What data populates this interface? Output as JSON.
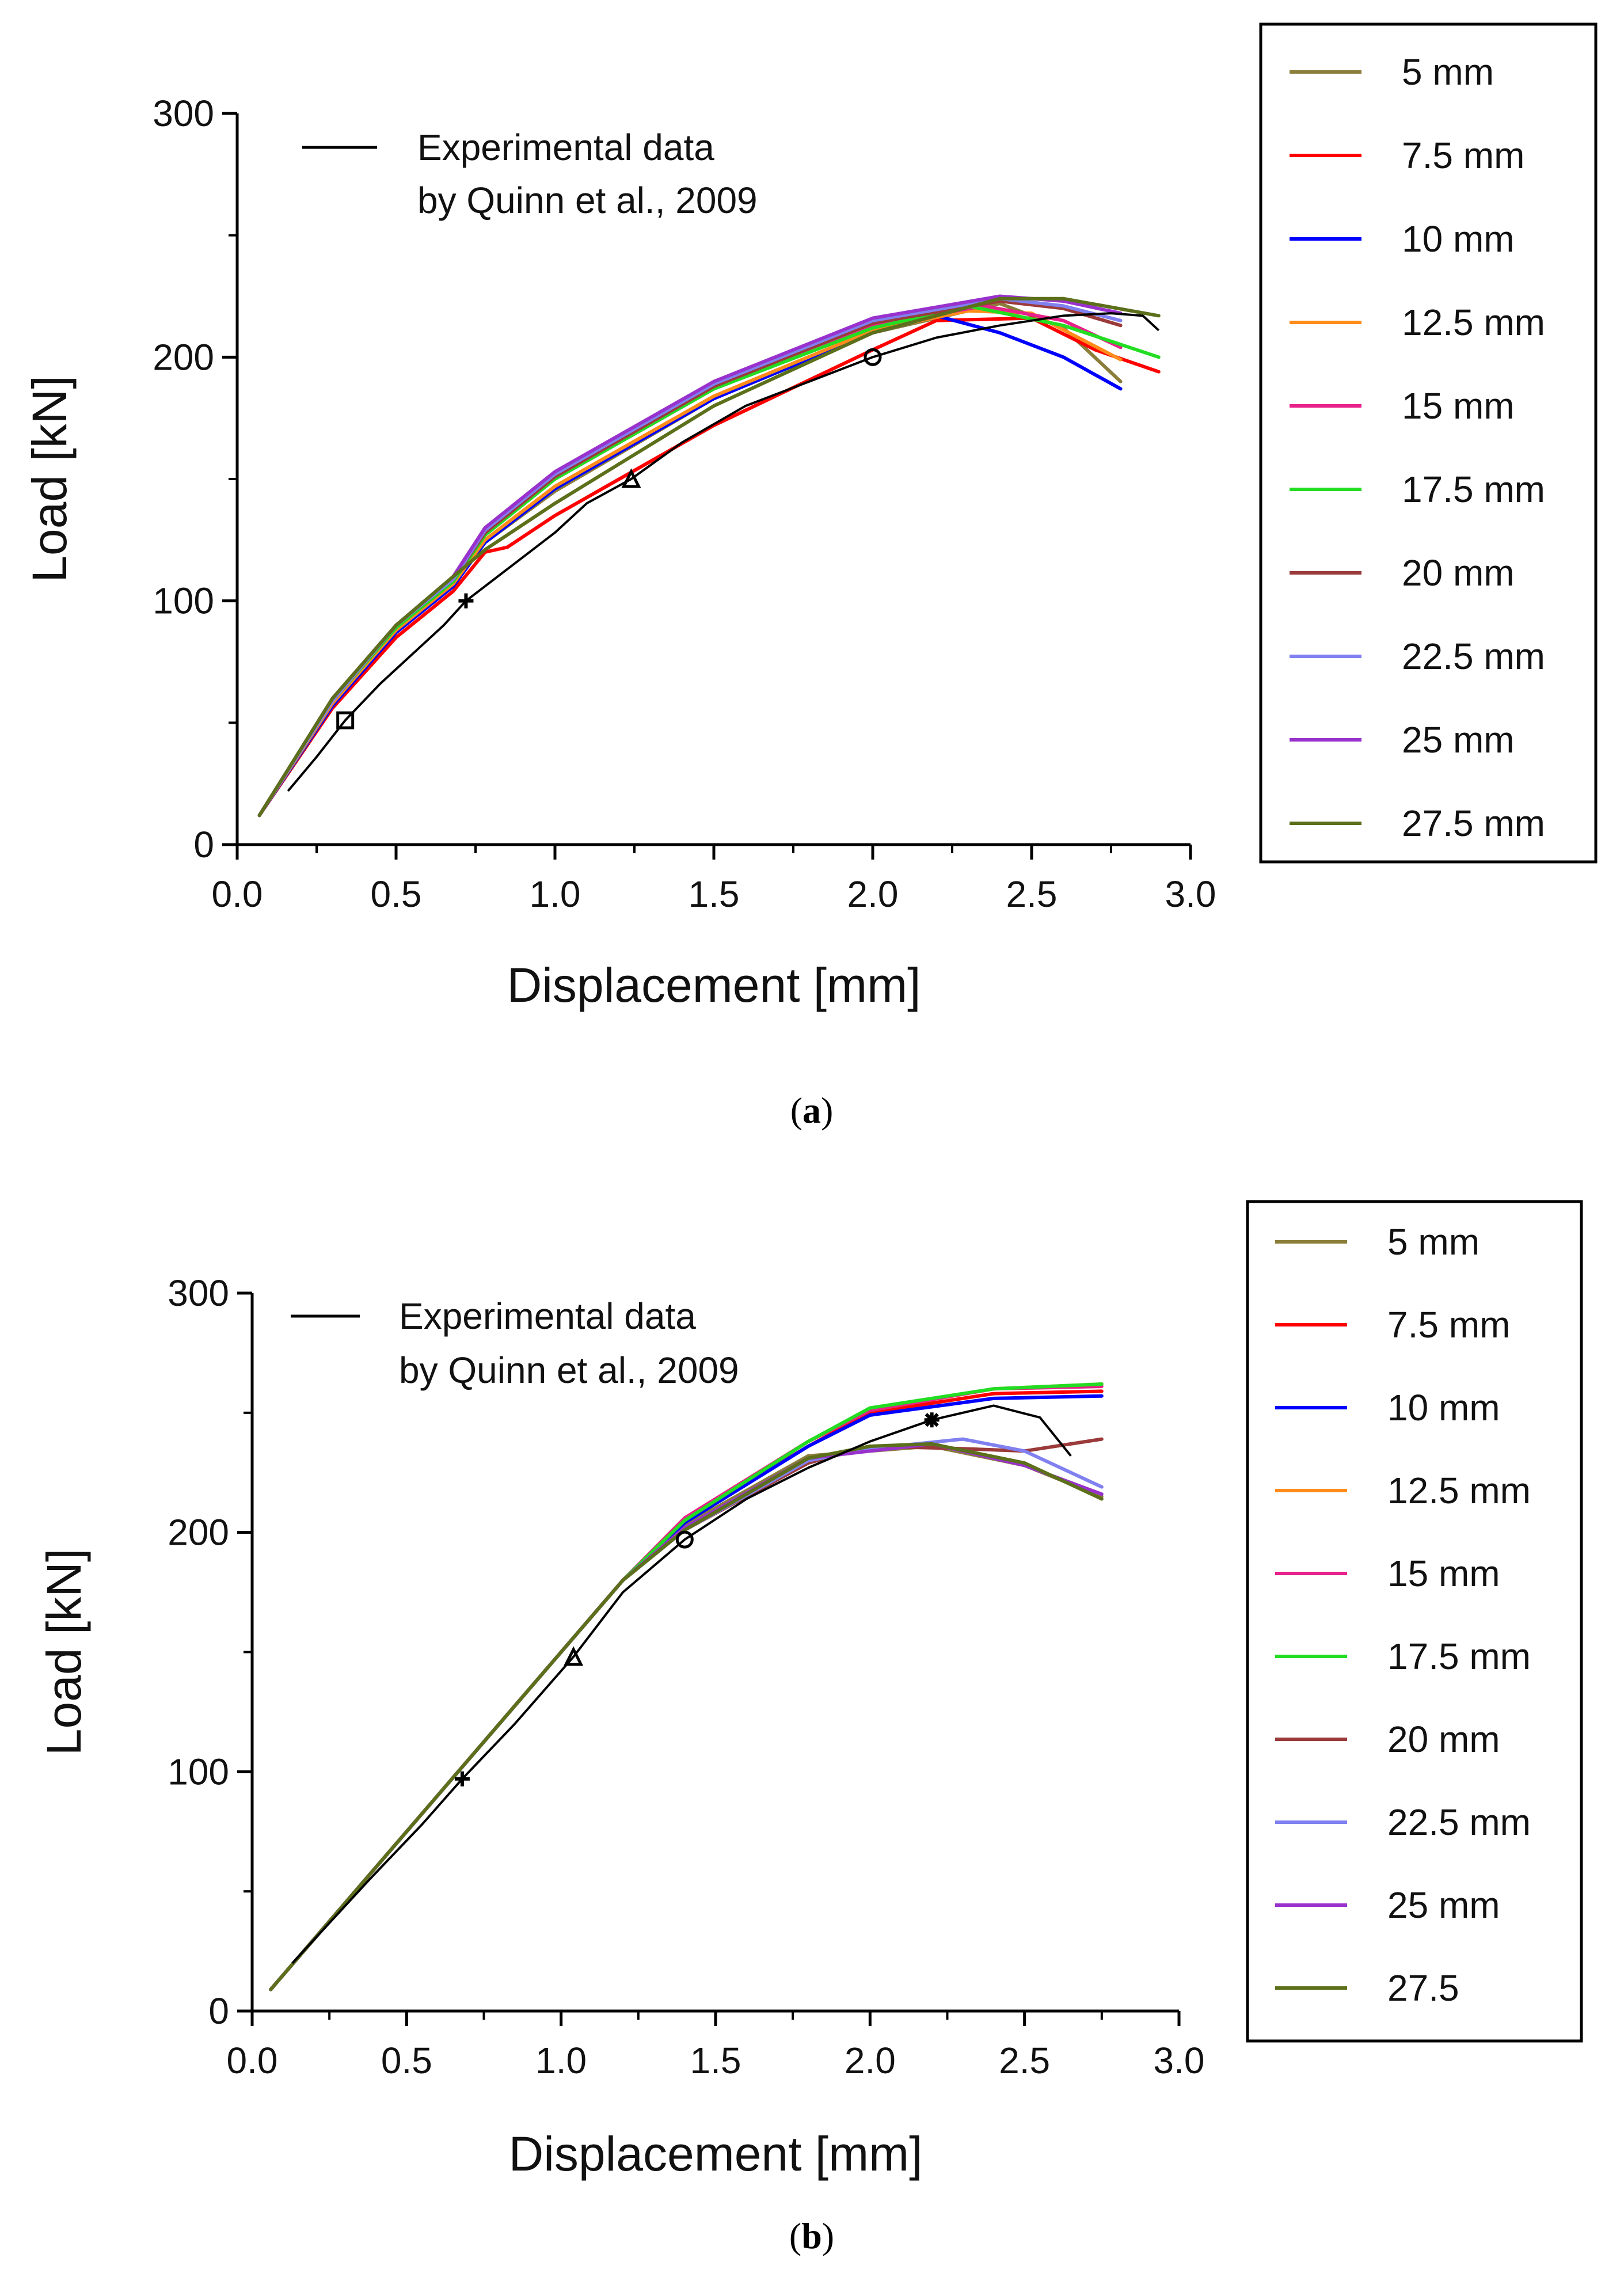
{
  "chart_data": [
    {
      "type": "line",
      "xlabel": "Displacement [mm]",
      "ylabel": "Load [kN]",
      "xlim": [
        0,
        3.0
      ],
      "ylim": [
        0,
        300
      ],
      "xticks": [
        "0.0",
        "0.5",
        "1.0",
        "1.5",
        "2.0",
        "2.5",
        "3.0"
      ],
      "yticks": [
        "0",
        "100",
        "200",
        "300"
      ],
      "legend_position": "outside-right",
      "caption": "(a)",
      "experimental": {
        "name": "Experimental data",
        "name_line2": "by Quinn et al., 2009",
        "color": "#000000",
        "points": [
          [
            0.16,
            22
          ],
          [
            0.25,
            36
          ],
          [
            0.34,
            51
          ],
          [
            0.45,
            66
          ],
          [
            0.55,
            78
          ],
          [
            0.65,
            90
          ],
          [
            0.72,
            100
          ],
          [
            0.85,
            113
          ],
          [
            1.0,
            128
          ],
          [
            1.1,
            140
          ],
          [
            1.24,
            150
          ],
          [
            1.4,
            165
          ],
          [
            1.6,
            180
          ],
          [
            1.8,
            190
          ],
          [
            2.0,
            200
          ],
          [
            2.2,
            208
          ],
          [
            2.4,
            213
          ],
          [
            2.6,
            217
          ],
          [
            2.75,
            218
          ],
          [
            2.85,
            217
          ],
          [
            2.9,
            211
          ]
        ],
        "markers": [
          [
            0.34,
            51,
            "square"
          ],
          [
            0.72,
            100,
            "plus"
          ],
          [
            1.24,
            150,
            "triangle"
          ],
          [
            2.0,
            200,
            "circle"
          ]
        ]
      },
      "series": [
        {
          "name": "5 mm",
          "label": "5 mm",
          "color": "#8B7D3A",
          "points": [
            [
              0.07,
              12
            ],
            [
              0.3,
              58
            ],
            [
              0.5,
              88
            ],
            [
              0.68,
              108
            ],
            [
              0.78,
              124
            ],
            [
              1.0,
              145
            ],
            [
              1.5,
              183
            ],
            [
              2.0,
              210
            ],
            [
              2.4,
              222
            ],
            [
              2.6,
              212
            ],
            [
              2.78,
              190
            ]
          ]
        },
        {
          "name": "7.5 mm",
          "label": "7.5 mm",
          "color": "#FF0000",
          "points": [
            [
              0.07,
              12
            ],
            [
              0.3,
              56
            ],
            [
              0.5,
              85
            ],
            [
              0.68,
              104
            ],
            [
              0.78,
              120
            ],
            [
              0.85,
              122
            ],
            [
              1.0,
              135
            ],
            [
              1.5,
              172
            ],
            [
              2.0,
              203
            ],
            [
              2.2,
              215
            ],
            [
              2.5,
              216
            ],
            [
              2.7,
              203
            ],
            [
              2.9,
              194
            ]
          ]
        },
        {
          "name": "10 mm",
          "label": "10 mm",
          "color": "#0000FF",
          "points": [
            [
              0.07,
              12
            ],
            [
              0.3,
              57
            ],
            [
              0.5,
              87
            ],
            [
              0.68,
              106
            ],
            [
              0.78,
              124
            ],
            [
              1.0,
              146
            ],
            [
              1.5,
              183
            ],
            [
              2.0,
              210
            ],
            [
              2.2,
              217
            ],
            [
              2.4,
              210
            ],
            [
              2.6,
              200
            ],
            [
              2.78,
              187
            ]
          ]
        },
        {
          "name": "12.5 mm",
          "label": "12.5 mm",
          "color": "#FF8C1A",
          "points": [
            [
              0.07,
              12
            ],
            [
              0.3,
              58
            ],
            [
              0.5,
              88
            ],
            [
              0.68,
              107
            ],
            [
              0.78,
              125
            ],
            [
              1.0,
              147
            ],
            [
              1.5,
              184
            ],
            [
              2.0,
              211
            ],
            [
              2.3,
              219
            ],
            [
              2.5,
              218
            ],
            [
              2.78,
              199
            ]
          ]
        },
        {
          "name": "15 mm",
          "label": "15 mm",
          "color": "#E8208A",
          "points": [
            [
              0.07,
              12
            ],
            [
              0.3,
              59
            ],
            [
              0.5,
              89
            ],
            [
              0.68,
              108
            ],
            [
              0.78,
              128
            ],
            [
              1.0,
              150
            ],
            [
              1.5,
              187
            ],
            [
              2.0,
              213
            ],
            [
              2.35,
              221
            ],
            [
              2.6,
              215
            ],
            [
              2.78,
              204
            ]
          ]
        },
        {
          "name": "17.5 mm",
          "label": "17.5 mm",
          "color": "#22DD22",
          "points": [
            [
              0.07,
              12
            ],
            [
              0.3,
              59
            ],
            [
              0.5,
              89
            ],
            [
              0.68,
              108
            ],
            [
              0.78,
              127
            ],
            [
              1.0,
              150
            ],
            [
              1.5,
              187
            ],
            [
              2.0,
              212
            ],
            [
              2.3,
              221
            ],
            [
              2.6,
              213
            ],
            [
              2.9,
              200
            ]
          ]
        },
        {
          "name": "20 mm",
          "label": "20 mm",
          "color": "#9B3A3A",
          "points": [
            [
              0.07,
              12
            ],
            [
              0.3,
              59
            ],
            [
              0.5,
              90
            ],
            [
              0.68,
              109
            ],
            [
              0.78,
              128
            ],
            [
              1.0,
              151
            ],
            [
              1.5,
              188
            ],
            [
              2.0,
              214
            ],
            [
              2.4,
              223
            ],
            [
              2.6,
              220
            ],
            [
              2.78,
              213
            ]
          ]
        },
        {
          "name": "22.5 mm",
          "label": "22.5 mm",
          "color": "#8080F0",
          "points": [
            [
              0.07,
              12
            ],
            [
              0.3,
              59
            ],
            [
              0.5,
              90
            ],
            [
              0.68,
              109
            ],
            [
              0.78,
              129
            ],
            [
              1.0,
              152
            ],
            [
              1.5,
              189
            ],
            [
              2.0,
              215
            ],
            [
              2.4,
              224
            ],
            [
              2.6,
              221
            ],
            [
              2.78,
              215
            ]
          ]
        },
        {
          "name": "25 mm",
          "label": "25 mm",
          "color": "#9932CC",
          "points": [
            [
              0.07,
              12
            ],
            [
              0.3,
              60
            ],
            [
              0.5,
              90
            ],
            [
              0.68,
              110
            ],
            [
              0.78,
              130
            ],
            [
              1.0,
              153
            ],
            [
              1.5,
              190
            ],
            [
              2.0,
              216
            ],
            [
              2.4,
              225
            ],
            [
              2.6,
              223
            ],
            [
              2.78,
              218
            ]
          ]
        },
        {
          "name": "27.5 mm",
          "label": "27.5 mm",
          "color": "#5C6F1A",
          "points": [
            [
              0.07,
              12
            ],
            [
              0.3,
              60
            ],
            [
              0.5,
              90
            ],
            [
              0.68,
              110
            ],
            [
              0.78,
              121
            ],
            [
              1.0,
              140
            ],
            [
              1.5,
              180
            ],
            [
              2.0,
              210
            ],
            [
              2.4,
              224
            ],
            [
              2.6,
              224
            ],
            [
              2.9,
              217
            ]
          ]
        }
      ]
    },
    {
      "type": "line",
      "xlabel": "Displacement [mm]",
      "ylabel": "Load [kN]",
      "xlim": [
        0,
        3.0
      ],
      "ylim": [
        0,
        300
      ],
      "xticks": [
        "0.0",
        "0.5",
        "1.0",
        "1.5",
        "2.0",
        "2.5",
        "3.0"
      ],
      "yticks": [
        "0",
        "100",
        "200",
        "300"
      ],
      "legend_position": "outside-right",
      "caption": "(b)",
      "experimental": {
        "name": "Experimental data",
        "name_line2": "by Quinn et al., 2009",
        "color": "#000000",
        "points": [
          [
            0.13,
            20
          ],
          [
            0.38,
            55
          ],
          [
            0.55,
            78
          ],
          [
            0.68,
            97
          ],
          [
            0.85,
            120
          ],
          [
            1.04,
            148
          ],
          [
            1.2,
            175
          ],
          [
            1.4,
            197
          ],
          [
            1.6,
            214
          ],
          [
            1.8,
            227
          ],
          [
            2.0,
            238
          ],
          [
            2.2,
            247
          ],
          [
            2.4,
            253
          ],
          [
            2.55,
            248
          ],
          [
            2.65,
            232
          ]
        ],
        "markers": [
          [
            0.68,
            97,
            "plus"
          ],
          [
            1.04,
            148,
            "triangle"
          ],
          [
            1.4,
            197,
            "circle"
          ],
          [
            2.2,
            247,
            "star"
          ]
        ]
      },
      "series": [
        {
          "name": "5 mm",
          "label": "5 mm",
          "color": "#8B7D3A",
          "points": [
            [
              0.06,
              9
            ],
            [
              1.2,
              180
            ],
            [
              1.4,
              203
            ],
            [
              1.8,
              232
            ],
            [
              2.2,
              236
            ],
            [
              2.5,
              228
            ],
            [
              2.75,
              215
            ]
          ]
        },
        {
          "name": "7.5 mm",
          "label": "7.5 mm",
          "color": "#FF0000",
          "points": [
            [
              0.06,
              9
            ],
            [
              1.2,
              180
            ],
            [
              1.4,
              205
            ],
            [
              1.8,
              236
            ],
            [
              2.0,
              250
            ],
            [
              2.4,
              258
            ],
            [
              2.75,
              259
            ]
          ]
        },
        {
          "name": "10 mm",
          "label": "10 mm",
          "color": "#0000FF",
          "points": [
            [
              0.06,
              9
            ],
            [
              1.2,
              180
            ],
            [
              1.4,
              204
            ],
            [
              1.8,
              236
            ],
            [
              2.0,
              249
            ],
            [
              2.4,
              256
            ],
            [
              2.75,
              257
            ]
          ]
        },
        {
          "name": "12.5 mm",
          "label": "12.5 mm",
          "color": "#FF8C1A",
          "points": [
            [
              0.06,
              9
            ],
            [
              1.2,
              180
            ],
            [
              1.4,
              206
            ],
            [
              1.8,
              238
            ],
            [
              2.0,
              251
            ],
            [
              2.4,
              260
            ],
            [
              2.75,
              262
            ]
          ]
        },
        {
          "name": "15 mm",
          "label": "15 mm",
          "color": "#E8208A",
          "points": [
            [
              0.06,
              9
            ],
            [
              1.2,
              180
            ],
            [
              1.4,
              206
            ],
            [
              1.8,
              238
            ],
            [
              2.0,
              251
            ],
            [
              2.4,
              260
            ],
            [
              2.75,
              261
            ]
          ]
        },
        {
          "name": "17.5 mm",
          "label": "17.5 mm",
          "color": "#22DD22",
          "points": [
            [
              0.06,
              9
            ],
            [
              1.2,
              180
            ],
            [
              1.4,
              205
            ],
            [
              1.8,
              238
            ],
            [
              2.0,
              252
            ],
            [
              2.4,
              260
            ],
            [
              2.75,
              262
            ]
          ]
        },
        {
          "name": "20 mm",
          "label": "20 mm",
          "color": "#9B3A3A",
          "points": [
            [
              0.06,
              9
            ],
            [
              1.2,
              180
            ],
            [
              1.4,
              201
            ],
            [
              1.8,
              229
            ],
            [
              2.0,
              236
            ],
            [
              2.3,
              235
            ],
            [
              2.5,
              234
            ],
            [
              2.75,
              239
            ]
          ]
        },
        {
          "name": "22.5 mm",
          "label": "22.5 mm",
          "color": "#8080F0",
          "points": [
            [
              0.06,
              9
            ],
            [
              1.2,
              180
            ],
            [
              1.4,
              201
            ],
            [
              1.8,
              230
            ],
            [
              2.0,
              235
            ],
            [
              2.3,
              239
            ],
            [
              2.5,
              234
            ],
            [
              2.75,
              219
            ]
          ]
        },
        {
          "name": "25 mm",
          "label": "25 mm",
          "color": "#9932CC",
          "points": [
            [
              0.06,
              9
            ],
            [
              1.2,
              180
            ],
            [
              1.4,
              202
            ],
            [
              1.8,
              231
            ],
            [
              2.0,
              234
            ],
            [
              2.2,
              237
            ],
            [
              2.5,
              228
            ],
            [
              2.75,
              216
            ]
          ]
        },
        {
          "name": "27.5 mm",
          "label": "27.5",
          "color": "#5C6F1A",
          "points": [
            [
              0.06,
              9
            ],
            [
              1.2,
              180
            ],
            [
              1.4,
              201
            ],
            [
              1.8,
              231
            ],
            [
              2.0,
              236
            ],
            [
              2.2,
              237
            ],
            [
              2.5,
              229
            ],
            [
              2.75,
              214
            ]
          ]
        }
      ]
    }
  ]
}
